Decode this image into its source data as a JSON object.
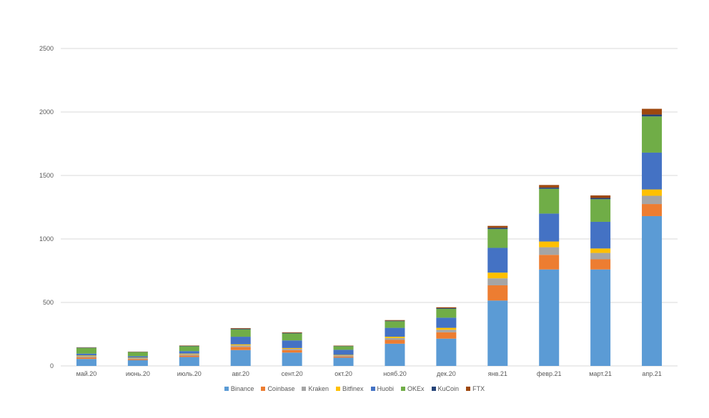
{
  "chart_data": {
    "type": "bar",
    "stacked": true,
    "title": "",
    "xlabel": "",
    "ylabel": "",
    "ylim": [
      0,
      2500
    ],
    "yticks": [
      0,
      500,
      1000,
      1500,
      2000,
      2500
    ],
    "grid": true,
    "legend_position": "bottom",
    "categories": [
      "май.20",
      "июнь.20",
      "июль.20",
      "авг.20",
      "сент.20",
      "окт.20",
      "нояб.20",
      "дек.20",
      "янв.21",
      "февр.21",
      "март.21",
      "апр.21"
    ],
    "series": [
      {
        "name": "Binance",
        "color": "#5B9BD5",
        "values": [
          55,
          45,
          70,
          125,
          105,
          65,
          175,
          215,
          515,
          760,
          760,
          1180
        ]
      },
      {
        "name": "Coinbase",
        "color": "#ED7D31",
        "values": [
          12,
          8,
          12,
          25,
          20,
          10,
          30,
          50,
          120,
          115,
          80,
          95
        ]
      },
      {
        "name": "Kraken",
        "color": "#A5A5A5",
        "values": [
          10,
          8,
          10,
          12,
          10,
          8,
          15,
          20,
          55,
          60,
          50,
          65
        ]
      },
      {
        "name": "Bitfinex",
        "color": "#FFC000",
        "values": [
          5,
          4,
          5,
          8,
          6,
          4,
          10,
          15,
          45,
          45,
          35,
          50
        ]
      },
      {
        "name": "Huobi",
        "color": "#4472C4",
        "values": [
          15,
          12,
          20,
          60,
          60,
          40,
          70,
          80,
          195,
          220,
          210,
          290
        ]
      },
      {
        "name": "OKEx",
        "color": "#70AD47",
        "values": [
          45,
          32,
          38,
          58,
          55,
          28,
          52,
          70,
          148,
          195,
          178,
          285
        ]
      },
      {
        "name": "KuCoin",
        "color": "#264478",
        "values": [
          3,
          2,
          3,
          5,
          4,
          2,
          4,
          5,
          10,
          10,
          10,
          15
        ]
      },
      {
        "name": "FTX",
        "color": "#9E480E",
        "values": [
          2,
          2,
          3,
          5,
          5,
          3,
          5,
          7,
          15,
          20,
          20,
          45
        ]
      }
    ]
  }
}
